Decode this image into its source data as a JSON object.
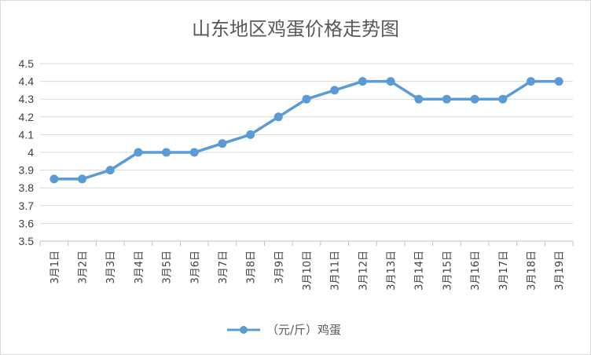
{
  "chart_data": {
    "type": "line",
    "title": "山东地区鸡蛋价格走势图",
    "categories": [
      "3月1日",
      "3月2日",
      "3月3日",
      "3月4日",
      "3月5日",
      "3月6日",
      "3月7日",
      "3月8日",
      "3月9日",
      "3月10日",
      "3月11日",
      "3月12日",
      "3月13日",
      "3月14日",
      "3月15日",
      "3月16日",
      "3月17日",
      "3月18日",
      "3月19日"
    ],
    "series": [
      {
        "name": "（元/斤）鸡蛋",
        "color": "#5b9bd5",
        "values": [
          3.85,
          3.85,
          3.9,
          4.0,
          4.0,
          4.0,
          4.05,
          4.1,
          4.2,
          4.3,
          4.35,
          4.4,
          4.4,
          4.3,
          4.3,
          4.3,
          4.3,
          4.4,
          4.4
        ]
      }
    ],
    "yticks": [
      "3.5",
      "3.6",
      "3.7",
      "3.8",
      "3.9",
      "4",
      "4.1",
      "4.2",
      "4.3",
      "4.4",
      "4.5"
    ],
    "ylim": [
      3.5,
      4.5
    ],
    "xlabel": "",
    "ylabel": "",
    "grid": true,
    "legend_position": "bottom"
  }
}
